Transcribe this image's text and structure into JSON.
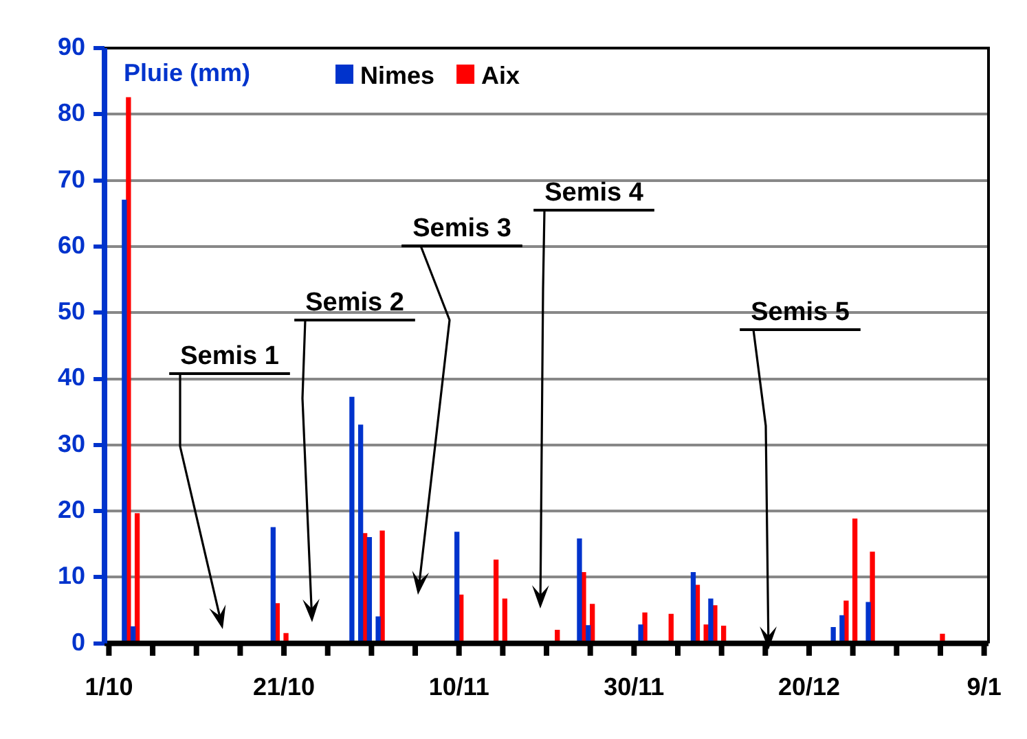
{
  "chart_data": {
    "type": "bar",
    "ylabel": "Pluie (mm)",
    "categories": [
      "1/10",
      null,
      null,
      null,
      null,
      null,
      null,
      null,
      null,
      null,
      null,
      null,
      null,
      null,
      null,
      null,
      null,
      null,
      null,
      null,
      "21/10",
      null,
      null,
      null,
      null,
      null,
      null,
      null,
      null,
      null,
      null,
      null,
      null,
      null,
      null,
      null,
      null,
      null,
      null,
      null,
      "10/11",
      null,
      null,
      null,
      null,
      null,
      null,
      null,
      null,
      null,
      null,
      null,
      null,
      null,
      null,
      null,
      null,
      null,
      null,
      null,
      "30/11",
      null,
      null,
      null,
      null,
      null,
      null,
      null,
      null,
      null,
      null,
      null,
      null,
      null,
      null,
      null,
      null,
      null,
      null,
      null,
      "20/12",
      null,
      null,
      null,
      null,
      null,
      null,
      null,
      null,
      null,
      null,
      null,
      null,
      null,
      null,
      null,
      null,
      null,
      null,
      null,
      "9/1"
    ],
    "ylim": [
      0,
      90
    ],
    "yticks": [
      0,
      10,
      20,
      30,
      40,
      50,
      60,
      70,
      80,
      90
    ],
    "grid": "y",
    "legend": "top",
    "series": [
      {
        "name": "Nimes",
        "color": "#0033cc",
        "values": [
          null,
          null,
          67,
          2.5,
          null,
          null,
          null,
          null,
          null,
          null,
          null,
          null,
          null,
          null,
          null,
          null,
          null,
          null,
          null,
          17.5,
          null,
          null,
          null,
          null,
          null,
          null,
          null,
          null,
          37.2,
          33,
          16,
          4,
          null,
          null,
          null,
          null,
          null,
          null,
          null,
          null,
          16.8,
          null,
          null,
          null,
          null,
          null,
          null,
          null,
          null,
          null,
          null,
          null,
          null,
          null,
          15.8,
          2.7,
          null,
          null,
          null,
          null,
          null,
          2.8,
          null,
          null,
          null,
          null,
          null,
          10.7,
          null,
          6.7,
          null,
          null,
          null,
          null,
          null,
          null,
          null,
          null,
          null,
          null,
          null,
          null,
          null,
          2.4,
          4.2,
          null,
          null,
          6.2,
          null,
          null,
          null,
          null,
          null,
          null,
          null,
          null,
          null,
          null,
          null,
          null,
          null
        ]
      },
      {
        "name": "Aix",
        "color": "#ff0000",
        "values": [
          null,
          null,
          82.5,
          19.6,
          null,
          null,
          null,
          null,
          null,
          null,
          null,
          null,
          null,
          null,
          null,
          null,
          null,
          null,
          null,
          6,
          1.5,
          null,
          null,
          null,
          null,
          null,
          null,
          null,
          null,
          16.6,
          null,
          17,
          null,
          null,
          null,
          null,
          null,
          null,
          null,
          null,
          7.3,
          null,
          null,
          null,
          12.6,
          6.7,
          null,
          null,
          null,
          null,
          null,
          2,
          null,
          null,
          10.7,
          5.9,
          null,
          null,
          null,
          null,
          null,
          4.6,
          null,
          null,
          4.4,
          null,
          null,
          8.8,
          2.8,
          5.7,
          2.6,
          null,
          null,
          null,
          null,
          null,
          null,
          null,
          null,
          null,
          null,
          null,
          null,
          null,
          6.4,
          18.8,
          null,
          13.8,
          null,
          null,
          null,
          null,
          null,
          null,
          null,
          1.4,
          null,
          null,
          null,
          null,
          null
        ]
      }
    ],
    "annotations": [
      "Semis 1",
      "Semis 2",
      "Semis 3",
      "Semis 4",
      "Semis 5"
    ]
  }
}
